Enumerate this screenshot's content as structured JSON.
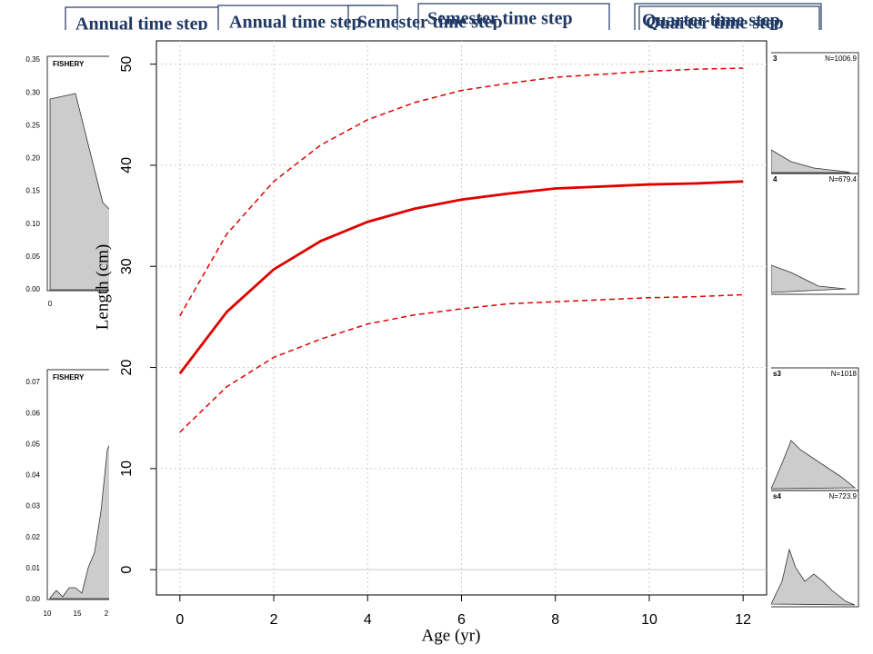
{
  "headers": [
    "Annual time step",
    "Annual time step",
    "Semester time step",
    "Semester time step",
    "Quarter time step",
    "Quarter time step"
  ],
  "left_panels": [
    {
      "label": "FISHERY",
      "yticks": [
        "0.35",
        "0.30",
        "0.25",
        "0.20",
        "0.15",
        "0.10",
        "0.05",
        "0.00"
      ],
      "xticks": [
        "0"
      ]
    },
    {
      "label": "FISHERY",
      "yticks": [
        "0.07",
        "0.06",
        "0.05",
        "0.04",
        "0.03",
        "0.02",
        "0.01",
        "0.00"
      ],
      "xticks": [
        "10",
        "15",
        "2"
      ]
    }
  ],
  "right_panels": [
    {
      "label": "3",
      "n": "N=1006.9"
    },
    {
      "label": "4",
      "n": "N=679.4"
    },
    {
      "label": "s3",
      "n": "N=1018"
    },
    {
      "label": "s4",
      "n": "N=723.9"
    }
  ],
  "chart_data": {
    "type": "line",
    "xlabel": "Age (yr)",
    "ylabel": "Length (cm)",
    "x": [
      0,
      1,
      2,
      3,
      4,
      5,
      6,
      7,
      8,
      9,
      10,
      11,
      12
    ],
    "series": [
      {
        "color": "#e00000",
        "style": "dashed",
        "values": [
          25.1,
          33.2,
          38.4,
          42.0,
          44.5,
          46.2,
          47.4,
          48.1,
          48.7,
          49.0,
          49.3,
          49.5,
          49.6
        ]
      },
      {
        "color": "#e00000",
        "style": "solid",
        "values": [
          19.4,
          25.5,
          29.7,
          32.5,
          34.4,
          35.7,
          36.6,
          37.2,
          37.7,
          37.9,
          38.1,
          38.2,
          38.4
        ]
      },
      {
        "color": "#e00000",
        "style": "dashed",
        "values": [
          13.6,
          18.1,
          21.0,
          22.8,
          24.3,
          25.2,
          25.8,
          26.3,
          26.5,
          26.7,
          26.9,
          27.0,
          27.2
        ]
      }
    ],
    "xlim": [
      -0.5,
      12.5
    ],
    "ylim": [
      -2.5,
      52.3
    ],
    "xticks": [
      0,
      2,
      4,
      6,
      8,
      10,
      12
    ],
    "yticks": [
      0,
      10,
      20,
      30,
      40,
      50
    ],
    "grid": true
  }
}
